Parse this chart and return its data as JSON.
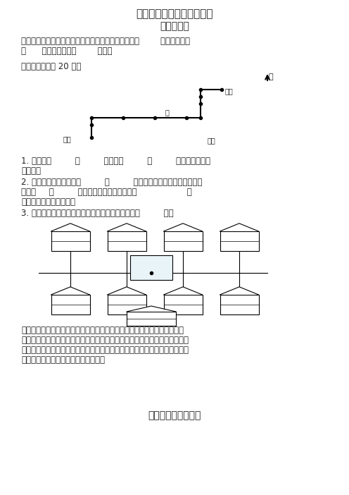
{
  "title1": "三年级数学下册巩固与提高",
  "title2": "位置与方向",
  "bg_color": "#ffffff",
  "text_color": "#333333",
  "para1": "早晨同学们面向太阳举行升旗仪式，此时同学们面向（        ）面，背对着\n（      ）面，左侧是（        ）面。",
  "para2": "送信。（每小格 20 米）",
  "question1": "1. 鸽子要向         飞         米，再向         飞         米就把信送给了\n小松鼠。",
  "question2": "2. 鸽子从松鼠家出来，向         飞         米就到了兔子家，把信送给兔子\n后再向     飞         米找到大象，最后再接着向                   飞\n米，向东把信交给小猫。",
  "question3": "3. 从鸽子开始出发，到把信全部送完，在路上共飞了         米。",
  "para3": "星期天，我们去动物园游玩，走进动物园大门，正北面有狮子馆和河马馆，\n熊猫馆在狮子馆的西北面，飞禽馆在狮子馆的东北面，经过熊猫馆向南走，可\n到达猴山和大象馆，经过猴山向东走到达狮子馆和金鱼馆，经过金鱼馆向南走\n到达骆驼馆，你能填出它们的位置吗？",
  "footer": "除数是一位数的除法"
}
